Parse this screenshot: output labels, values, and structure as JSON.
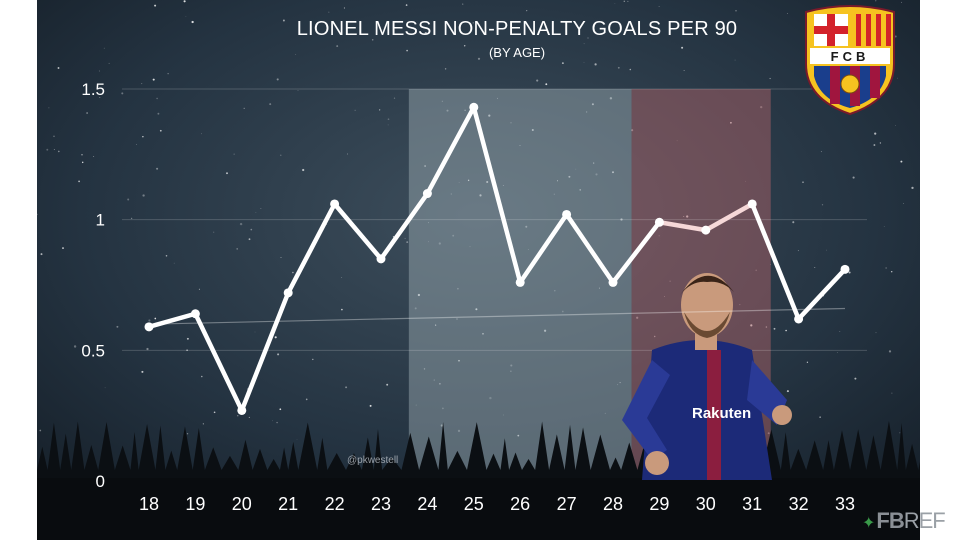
{
  "header": {
    "title": "LIONEL MESSI NON-PENALTY GOALS PER 90",
    "subtitle": "(BY AGE)"
  },
  "badge": {
    "text": "FCB",
    "icon": "fc-barcelona-crest-icon"
  },
  "watermark": "@pkwestell",
  "footer": {
    "brand_fb": "FB",
    "brand_ref": "REF",
    "icon": "fbref-leaf-icon"
  },
  "colors": {
    "background": "#1f2a35",
    "line": "#ffffff",
    "highlight_grey": "#9fb0b5",
    "highlight_red": "#b8676a",
    "axis_text": "#ffffff"
  },
  "chart_data": {
    "type": "line",
    "x": [
      18,
      19,
      20,
      21,
      22,
      23,
      24,
      25,
      26,
      27,
      28,
      29,
      30,
      31,
      32,
      33
    ],
    "series": [
      {
        "values": [
          0.59,
          0.64,
          0.27,
          0.72,
          1.06,
          0.85,
          1.1,
          1.43,
          0.76,
          1.02,
          0.76,
          0.99,
          0.96,
          1.06,
          0.62,
          0.81
        ]
      }
    ],
    "trend": {
      "from": 0.6,
      "to": 0.66
    },
    "ylim": [
      0,
      1.5
    ],
    "yticks": [
      "0",
      "0.5",
      "1",
      "1.5"
    ],
    "xlabel": "",
    "ylabel": "",
    "grid": true,
    "highlight_bands": [
      {
        "from": 23.6,
        "to": 28.4,
        "color": "#9fb0b5"
      },
      {
        "from": 28.4,
        "to": 31.4,
        "color": "#b8676a"
      }
    ]
  }
}
